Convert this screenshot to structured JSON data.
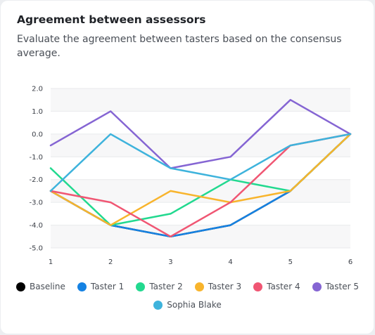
{
  "card": {
    "title": "Agreement between assessors",
    "subtitle": "Evaluate the agreement between tasters based on the consensus average."
  },
  "chart_data": {
    "type": "line",
    "title": "",
    "xlabel": "",
    "ylabel": "",
    "x": [
      1,
      2,
      3,
      4,
      5,
      6
    ],
    "xlim": [
      1,
      6
    ],
    "ylim": [
      -5,
      2
    ],
    "y_ticks": [
      2.0,
      1.0,
      0.0,
      -1.0,
      -2.0,
      -3.0,
      -4.0,
      -5.0
    ],
    "y_tick_labels": [
      "2.0",
      "1.0",
      "0.0",
      "-1.0",
      "-2.0",
      "-3.0",
      "-4.0",
      "-5.0"
    ],
    "x_tick_labels": [
      "1",
      "2",
      "3",
      "4",
      "5",
      "6"
    ],
    "grid": true,
    "legend_position": "bottom",
    "series": [
      {
        "name": "Baseline",
        "color": "#000000",
        "values": [
          -2.5,
          -4,
          -4.5,
          -4,
          -2.5,
          0
        ]
      },
      {
        "name": "Taster 1",
        "color": "#1582e3",
        "values": [
          -2.5,
          -4,
          -4.5,
          -4,
          -2.5,
          0
        ]
      },
      {
        "name": "Taster 2",
        "color": "#22d98f",
        "values": [
          -1.5,
          -4,
          -3.5,
          -2,
          -2.5,
          0
        ]
      },
      {
        "name": "Taster 3",
        "color": "#f8b42c",
        "values": [
          -2.5,
          -4,
          -2.5,
          -3,
          -2.5,
          0
        ]
      },
      {
        "name": "Taster 4",
        "color": "#f05673",
        "values": [
          -2.5,
          -3,
          -4.5,
          -3,
          -0.5,
          0
        ]
      },
      {
        "name": "Taster 5",
        "color": "#8565d3",
        "values": [
          -0.5,
          1,
          -1.5,
          -1,
          1.5,
          0
        ]
      },
      {
        "name": "Sophia Blake",
        "color": "#3eb3dc",
        "values": [
          -2.5,
          0,
          -1.5,
          -2,
          -0.5,
          0
        ]
      }
    ]
  }
}
